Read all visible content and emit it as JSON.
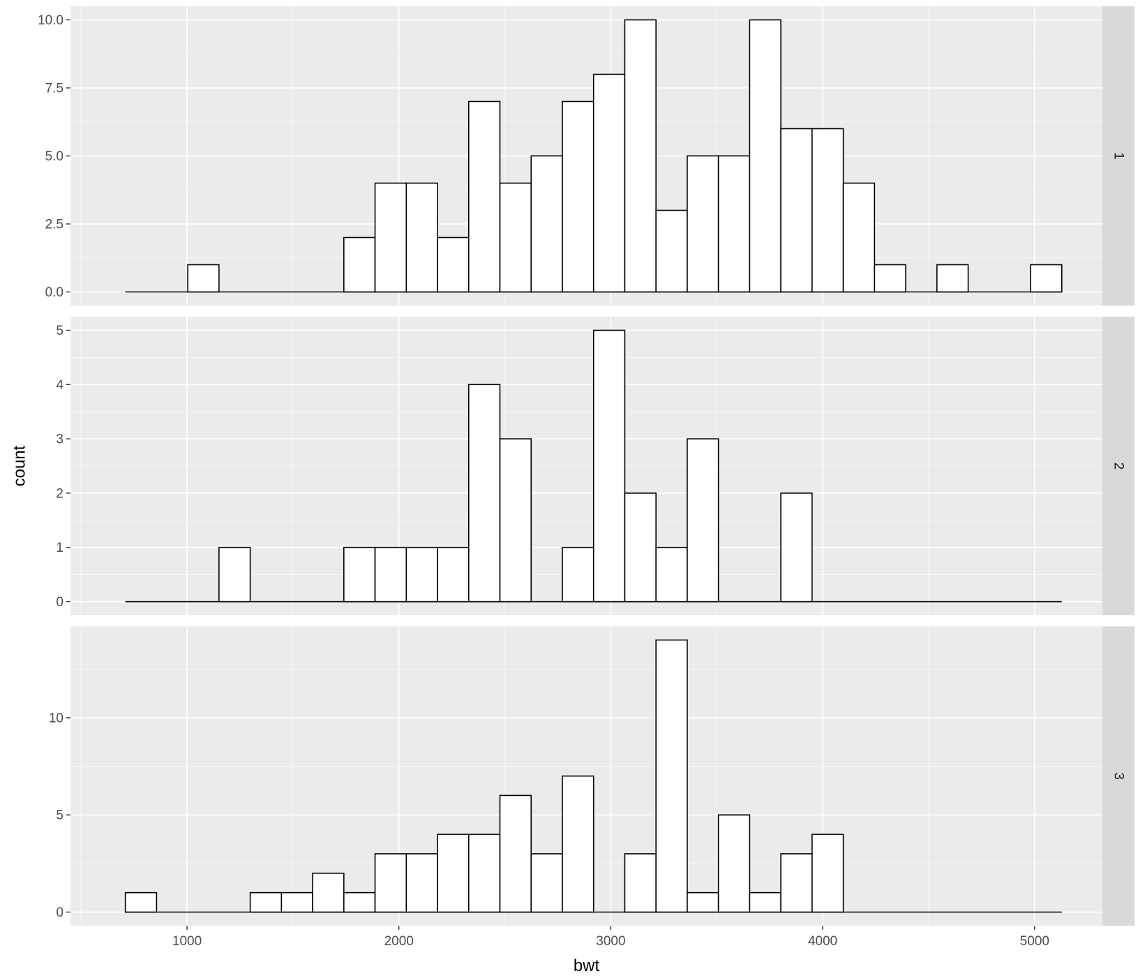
{
  "chart_data": {
    "type": "bar",
    "subtype": "faceted-histogram",
    "title": "",
    "xlabel": "bwt",
    "ylabel": "count",
    "xlim": [
      450,
      5320
    ],
    "x_ticks": [
      1000,
      2000,
      3000,
      4000,
      5000
    ],
    "bin_start": 709,
    "bin_width": 147.31,
    "colors": {
      "panel_bg": "#EBEBEB",
      "grid": "#FFFFFF",
      "strip_bg": "#D9D9D9",
      "bar_fill": "#FFFFFF",
      "bar_stroke": "#000000"
    },
    "facets": [
      {
        "strip": "1",
        "ylim": [
          -0.5,
          10.5
        ],
        "y_ticks": [
          0,
          2.5,
          5,
          7.5,
          10
        ],
        "y_tick_labels": [
          "0.0",
          "2.5",
          "5.0",
          "7.5",
          "10.0"
        ],
        "counts": [
          0,
          0,
          1,
          0,
          0,
          0,
          0,
          2,
          4,
          4,
          2,
          7,
          4,
          5,
          7,
          8,
          10,
          3,
          5,
          5,
          10,
          6,
          6,
          4,
          1,
          0,
          1,
          0,
          0,
          1
        ]
      },
      {
        "strip": "2",
        "ylim": [
          -0.25,
          5.25
        ],
        "y_ticks": [
          0,
          1,
          2,
          3,
          4,
          5
        ],
        "y_tick_labels": [
          "0",
          "1",
          "2",
          "3",
          "4",
          "5"
        ],
        "counts": [
          0,
          0,
          0,
          1,
          0,
          0,
          0,
          1,
          1,
          1,
          1,
          4,
          3,
          0,
          1,
          5,
          2,
          1,
          3,
          0,
          0,
          2,
          0,
          0,
          0,
          0,
          0,
          0,
          0,
          0
        ]
      },
      {
        "strip": "3",
        "ylim": [
          -0.7,
          14.7
        ],
        "y_ticks": [
          0,
          5,
          10
        ],
        "y_tick_labels": [
          "0",
          "5",
          "10"
        ],
        "counts": [
          1,
          0,
          0,
          0,
          1,
          1,
          2,
          1,
          3,
          3,
          4,
          4,
          6,
          3,
          7,
          0,
          3,
          14,
          1,
          5,
          1,
          3,
          4,
          0,
          0,
          0,
          0,
          0,
          0,
          0
        ]
      }
    ]
  }
}
